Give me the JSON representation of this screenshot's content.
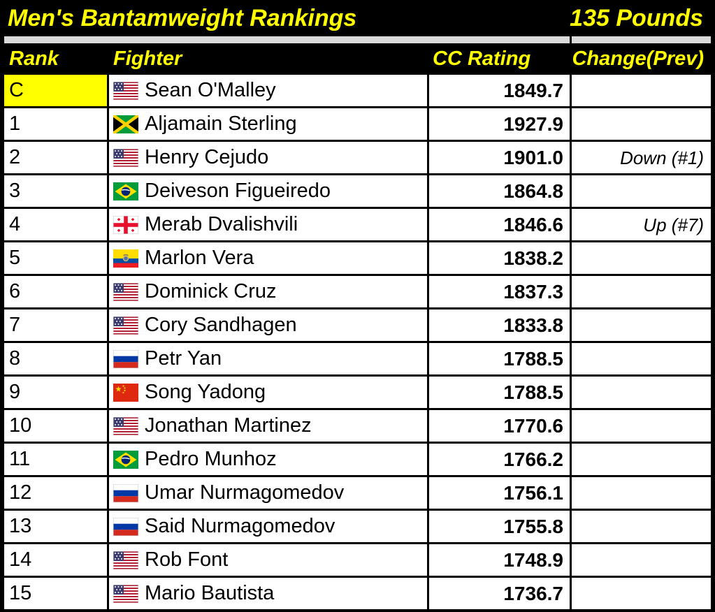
{
  "title": {
    "left": "Men's Bantamweight Rankings",
    "right": "135 Pounds"
  },
  "header": {
    "rank": "Rank",
    "fighter": "Fighter",
    "rating": "CC Rating",
    "change": "Change(Prev)"
  },
  "colors": {
    "header_bg": "#000000",
    "header_text": "#FFFF00",
    "champion_cell_bg": "#FFFF00",
    "divider_band": "#D9D9D9",
    "row_bg": "#FFFFFF",
    "body_text": "#000000",
    "border": "#000000"
  },
  "rows": [
    {
      "rank": "C",
      "flag": "us",
      "flag_icon": "us-flag-icon",
      "fighter": "Sean O'Malley",
      "rating": "1849.7",
      "change": "",
      "champion": true
    },
    {
      "rank": "1",
      "flag": "jm",
      "flag_icon": "jm-flag-icon",
      "fighter": "Aljamain Sterling",
      "rating": "1927.9",
      "change": "",
      "champion": false
    },
    {
      "rank": "2",
      "flag": "us",
      "flag_icon": "us-flag-icon",
      "fighter": "Henry Cejudo",
      "rating": "1901.0",
      "change": "Down (#1)",
      "champion": false
    },
    {
      "rank": "3",
      "flag": "br",
      "flag_icon": "br-flag-icon",
      "fighter": "Deiveson Figueiredo",
      "rating": "1864.8",
      "change": "",
      "champion": false
    },
    {
      "rank": "4",
      "flag": "ge",
      "flag_icon": "ge-flag-icon",
      "fighter": "Merab Dvalishvili",
      "rating": "1846.6",
      "change": "Up (#7)",
      "champion": false
    },
    {
      "rank": "5",
      "flag": "ec",
      "flag_icon": "ec-flag-icon",
      "fighter": "Marlon Vera",
      "rating": "1838.2",
      "change": "",
      "champion": false
    },
    {
      "rank": "6",
      "flag": "us",
      "flag_icon": "us-flag-icon",
      "fighter": "Dominick Cruz",
      "rating": "1837.3",
      "change": "",
      "champion": false
    },
    {
      "rank": "7",
      "flag": "us",
      "flag_icon": "us-flag-icon",
      "fighter": "Cory Sandhagen",
      "rating": "1833.8",
      "change": "",
      "champion": false
    },
    {
      "rank": "8",
      "flag": "ru",
      "flag_icon": "ru-flag-icon",
      "fighter": "Petr Yan",
      "rating": "1788.5",
      "change": "",
      "champion": false
    },
    {
      "rank": "9",
      "flag": "cn",
      "flag_icon": "cn-flag-icon",
      "fighter": "Song Yadong",
      "rating": "1788.5",
      "change": "",
      "champion": false
    },
    {
      "rank": "10",
      "flag": "us",
      "flag_icon": "us-flag-icon",
      "fighter": "Jonathan Martinez",
      "rating": "1770.6",
      "change": "",
      "champion": false
    },
    {
      "rank": "11",
      "flag": "br",
      "flag_icon": "br-flag-icon",
      "fighter": "Pedro Munhoz",
      "rating": "1766.2",
      "change": "",
      "champion": false
    },
    {
      "rank": "12",
      "flag": "ru",
      "flag_icon": "ru-flag-icon",
      "fighter": "Umar Nurmagomedov",
      "rating": "1756.1",
      "change": "",
      "champion": false
    },
    {
      "rank": "13",
      "flag": "ru",
      "flag_icon": "ru-flag-icon",
      "fighter": "Said Nurmagomedov",
      "rating": "1755.8",
      "change": "",
      "champion": false
    },
    {
      "rank": "14",
      "flag": "us",
      "flag_icon": "us-flag-icon",
      "fighter": "Rob Font",
      "rating": "1748.9",
      "change": "",
      "champion": false
    },
    {
      "rank": "15",
      "flag": "us",
      "flag_icon": "us-flag-icon",
      "fighter": "Mario Bautista",
      "rating": "1736.7",
      "change": "",
      "champion": false
    }
  ],
  "chart_data": {
    "type": "table",
    "title": "Men's Bantamweight Rankings",
    "subtitle": "135 Pounds",
    "columns": [
      "Rank",
      "Fighter",
      "CC Rating",
      "Change(Prev)"
    ],
    "rows": [
      [
        "C",
        "Sean O'Malley",
        1849.7,
        ""
      ],
      [
        "1",
        "Aljamain Sterling",
        1927.9,
        ""
      ],
      [
        "2",
        "Henry Cejudo",
        1901.0,
        "Down (#1)"
      ],
      [
        "3",
        "Deiveson Figueiredo",
        1864.8,
        ""
      ],
      [
        "4",
        "Merab Dvalishvili",
        1846.6,
        "Up (#7)"
      ],
      [
        "5",
        "Marlon Vera",
        1838.2,
        ""
      ],
      [
        "6",
        "Dominick Cruz",
        1837.3,
        ""
      ],
      [
        "7",
        "Cory Sandhagen",
        1833.8,
        ""
      ],
      [
        "8",
        "Petr Yan",
        1788.5,
        ""
      ],
      [
        "9",
        "Song Yadong",
        1788.5,
        ""
      ],
      [
        "10",
        "Jonathan Martinez",
        1770.6,
        ""
      ],
      [
        "11",
        "Pedro Munhoz",
        1766.2,
        ""
      ],
      [
        "12",
        "Umar Nurmagomedov",
        1756.1,
        ""
      ],
      [
        "13",
        "Said Nurmagomedov",
        1755.8,
        ""
      ],
      [
        "14",
        "Rob Font",
        1748.9,
        ""
      ],
      [
        "15",
        "Mario Bautista",
        1736.7,
        ""
      ]
    ]
  }
}
